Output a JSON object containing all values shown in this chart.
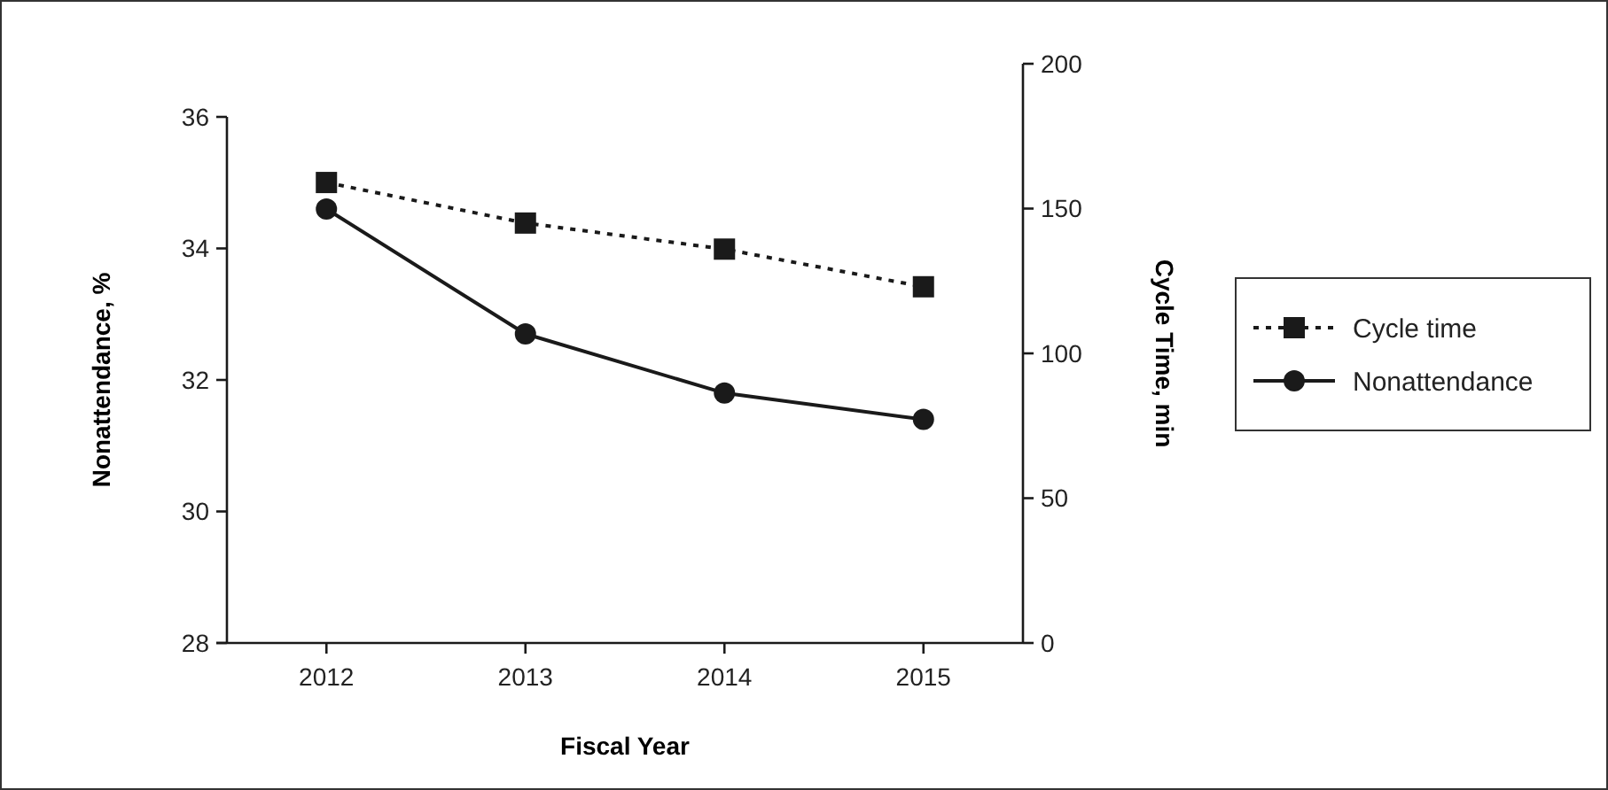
{
  "chart_data": {
    "type": "line",
    "xlabel": "Fiscal Year",
    "ylabel": "Nonattendance, %",
    "y2label": "Cycle Time, min",
    "categories": [
      "2012",
      "2013",
      "2014",
      "2015"
    ],
    "series": [
      {
        "name": "Cycle time",
        "color": "#1a1a1a",
        "values": [
          159,
          145,
          136,
          123
        ],
        "axis": "y2",
        "marker": "square",
        "line_style": "dotted"
      },
      {
        "name": "Nonattendance",
        "color": "#1a1a1a",
        "values": [
          34.6,
          32.7,
          31.8,
          31.4
        ],
        "marker": "circle",
        "line_style": "solid"
      }
    ],
    "ylim": [
      28,
      36
    ],
    "yticks": [
      28,
      30,
      32,
      34,
      36
    ],
    "y2lim": [
      0,
      200
    ],
    "y2ticks": [
      0,
      50,
      100,
      150,
      200
    ],
    "grid": false,
    "legend": "right"
  }
}
